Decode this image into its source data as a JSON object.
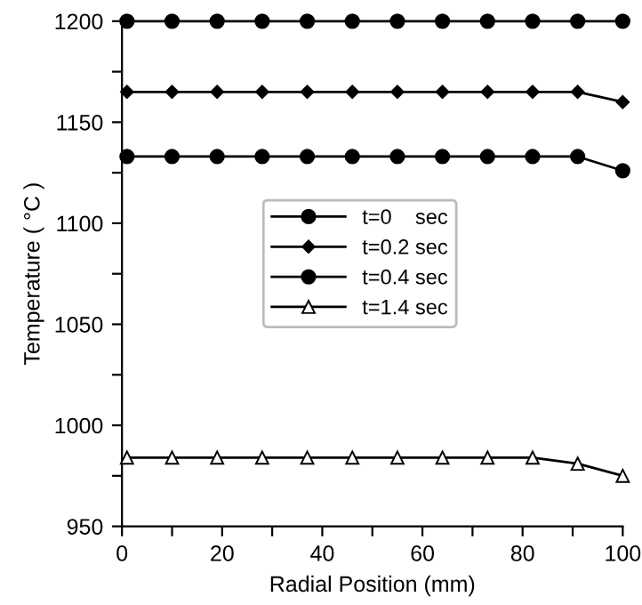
{
  "chart_data": {
    "type": "line",
    "xlabel": "Radial Position (mm)",
    "ylabel": "Temperature ( °C )",
    "x": [
      1,
      10,
      19,
      28,
      37,
      46,
      55,
      64,
      73,
      82,
      91,
      100
    ],
    "series": [
      {
        "name": "t=0    sec",
        "color": "#000000",
        "marker": "circle",
        "values": [
          1200,
          1200,
          1200,
          1200,
          1200,
          1200,
          1200,
          1200,
          1200,
          1200,
          1200,
          1200
        ]
      },
      {
        "name": "t=0.2 sec",
        "color": "#000000",
        "marker": "diamond",
        "values": [
          1165,
          1165,
          1165,
          1165,
          1165,
          1165,
          1165,
          1165,
          1165,
          1165,
          1165,
          1160
        ]
      },
      {
        "name": "t=0.4 sec",
        "color": "#000000",
        "marker": "circle",
        "values": [
          1133,
          1133,
          1133,
          1133,
          1133,
          1133,
          1133,
          1133,
          1133,
          1133,
          1133,
          1126
        ]
      },
      {
        "name": "t=1.4 sec",
        "color": "#000000",
        "marker": "triangle",
        "values": [
          984,
          984,
          984,
          984,
          984,
          984,
          984,
          984,
          984,
          984,
          981,
          975
        ]
      }
    ],
    "xlim": [
      0,
      100
    ],
    "ylim": [
      950,
      1200
    ],
    "xticks": [
      0,
      {
        "value": 10,
        "label": null
      },
      20,
      {
        "value": 30,
        "label": null
      },
      40,
      {
        "value": 50,
        "label": null
      },
      60,
      {
        "value": 70,
        "label": null
      },
      80,
      {
        "value": 90,
        "label": null
      },
      100
    ],
    "yticks": [
      950,
      {
        "value": 975,
        "label": null
      },
      1000,
      {
        "value": 1025,
        "label": null
      },
      1050,
      {
        "value": 1075,
        "label": null
      },
      1100,
      {
        "value": 1125,
        "label": null
      },
      1150,
      {
        "value": 1175,
        "label": null
      },
      1200
    ],
    "grid": false,
    "legend": "center",
    "line_style": "solid"
  }
}
